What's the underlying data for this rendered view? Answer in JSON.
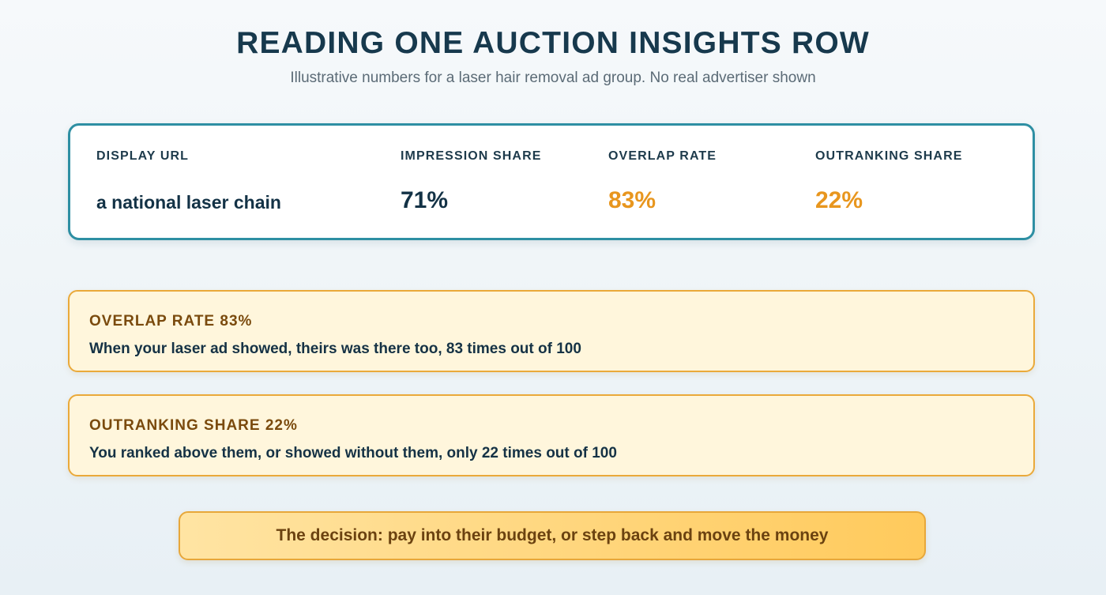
{
  "header": {
    "title": "READING ONE AUCTION INSIGHTS ROW",
    "subtitle": "Illustrative numbers for a laser hair removal ad group. No real advertiser shown"
  },
  "row": {
    "display_url": {
      "label": "DISPLAY URL",
      "value": "a national laser chain"
    },
    "impression_share": {
      "label": "IMPRESSION SHARE",
      "value": "71%",
      "color": "#133246"
    },
    "overlap_rate": {
      "label": "OVERLAP RATE",
      "value": "83%",
      "color": "#e8961e"
    },
    "outranking_share": {
      "label": "OUTRANKING SHARE",
      "value": "22%",
      "color": "#e8961e"
    }
  },
  "callouts": [
    {
      "title": "OVERLAP RATE 83%",
      "text": "When your laser ad showed, theirs was there too, 83 times out of 100"
    },
    {
      "title": "OUTRANKING SHARE 22%",
      "text": "You ranked above them, or showed without them, only 22 times out of 100"
    }
  ],
  "decision": {
    "text": "The decision: pay into their budget, or step back and move the money"
  }
}
